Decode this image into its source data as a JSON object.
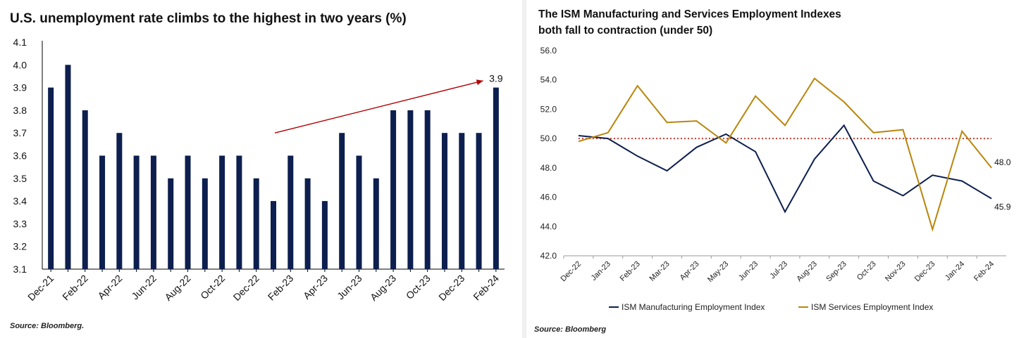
{
  "chart_data": [
    {
      "type": "bar",
      "title": "U.S. unemployment rate climbs to the highest in two years (%)",
      "source": "Source: Bloomberg.",
      "ylim": [
        3.1,
        4.1
      ],
      "yticks": [
        "4.1",
        "4.0",
        "3.9",
        "3.8",
        "3.7",
        "3.6",
        "3.5",
        "3.4",
        "3.3",
        "3.2",
        "3.1"
      ],
      "categories": [
        "Dec-21",
        "Jan-22",
        "Feb-22",
        "Mar-22",
        "Apr-22",
        "May-22",
        "Jun-22",
        "Jul-22",
        "Aug-22",
        "Sep-22",
        "Oct-22",
        "Nov-22",
        "Dec-22",
        "Jan-23",
        "Feb-23",
        "Mar-23",
        "Apr-23",
        "May-23",
        "Jun-23",
        "Jul-23",
        "Aug-23",
        "Sep-23",
        "Oct-23",
        "Nov-23",
        "Dec-23",
        "Jan-24",
        "Feb-24"
      ],
      "xtick_labels": [
        "Dec-21",
        "Feb-22",
        "Apr-22",
        "Jun-22",
        "Aug-22",
        "Oct-22",
        "Dec-22",
        "Feb-23",
        "Apr-23",
        "Jun-23",
        "Aug-23",
        "Oct-23",
        "Dec-23",
        "Feb-24"
      ],
      "values": [
        3.9,
        4.0,
        3.8,
        3.6,
        3.7,
        3.6,
        3.6,
        3.5,
        3.6,
        3.5,
        3.6,
        3.6,
        3.5,
        3.4,
        3.6,
        3.5,
        3.4,
        3.7,
        3.6,
        3.5,
        3.8,
        3.8,
        3.8,
        3.7,
        3.7,
        3.7,
        3.9
      ],
      "bar_color": "#0d1f4e",
      "annotation": {
        "label": "3.9",
        "arrow_color": "#b00000"
      },
      "grid": false
    },
    {
      "type": "line",
      "title": "The ISM Manufacturing and Services Employment Indexes both fall to contraction (under 50)",
      "title_lines": [
        "The ISM Manufacturing and Services Employment Indexes",
        "both fall to contraction (under 50)"
      ],
      "source": "Source: Bloomberg",
      "ylim": [
        42.0,
        56.0
      ],
      "yticks": [
        "56.0",
        "54.0",
        "52.0",
        "50.0",
        "48.0",
        "46.0",
        "44.0",
        "42.0"
      ],
      "x": [
        "Dec-22",
        "Jan-23",
        "Feb-23",
        "Mar-23",
        "Apr-23",
        "May-23",
        "Jun-23",
        "Jul-23",
        "Aug-23",
        "Sep-23",
        "Oct-23",
        "Nov-23",
        "Dec-23",
        "Jan-24",
        "Feb-24"
      ],
      "reference_line": {
        "value": 50.0,
        "color": "#c0392b"
      },
      "legend": "bottom",
      "series": [
        {
          "name": "ISM Manufacturing Employment Index",
          "color": "#0d1f4e",
          "values": [
            50.2,
            50.0,
            48.8,
            47.8,
            49.4,
            50.3,
            49.1,
            45.0,
            48.6,
            50.9,
            47.1,
            46.1,
            47.5,
            47.1,
            45.9
          ],
          "end_label": "45.9"
        },
        {
          "name": "ISM Services Employment Index",
          "color": "#b8860b",
          "values": [
            49.8,
            50.4,
            53.6,
            51.1,
            51.2,
            49.7,
            52.9,
            50.9,
            54.1,
            52.5,
            50.4,
            50.6,
            43.8,
            50.5,
            48.0
          ],
          "end_label": "48.0"
        }
      ],
      "grid": false
    }
  ]
}
